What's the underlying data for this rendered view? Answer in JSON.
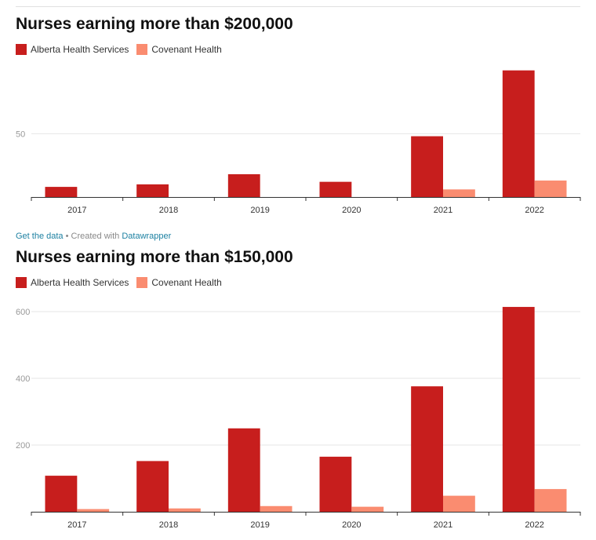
{
  "footer": {
    "get_data_label": "Get the data",
    "separator": " • Created with ",
    "datawrapper_label": "Datawrapper"
  },
  "chart_data": [
    {
      "type": "bar",
      "title": "Nurses earning more than $200,000",
      "categories": [
        "2017",
        "2018",
        "2019",
        "2020",
        "2021",
        "2022"
      ],
      "series": [
        {
          "name": "Alberta Health Services",
          "color": "#c71e1d",
          "values": [
            8,
            10,
            18,
            12,
            48,
            100
          ]
        },
        {
          "name": "Covenant Health",
          "color": "#fa8c70",
          "values": [
            0,
            0,
            0,
            0,
            6,
            13
          ]
        }
      ],
      "yticks": [
        50
      ],
      "ylim": [
        0,
        106
      ],
      "xlabel": "",
      "ylabel": "",
      "grid": true,
      "legend": "top-left"
    },
    {
      "type": "bar",
      "title": "Nurses earning more than $150,000",
      "categories": [
        "2017",
        "2018",
        "2019",
        "2020",
        "2021",
        "2022"
      ],
      "series": [
        {
          "name": "Alberta Health Services",
          "color": "#c71e1d",
          "values": [
            108,
            152,
            250,
            165,
            376,
            614
          ]
        },
        {
          "name": "Covenant Health",
          "color": "#fa8c70",
          "values": [
            8,
            10,
            17,
            15,
            48,
            68
          ]
        }
      ],
      "yticks": [
        200,
        400,
        600
      ],
      "ylim": [
        0,
        640
      ],
      "xlabel": "",
      "ylabel": "",
      "grid": true,
      "legend": "top-left"
    }
  ]
}
